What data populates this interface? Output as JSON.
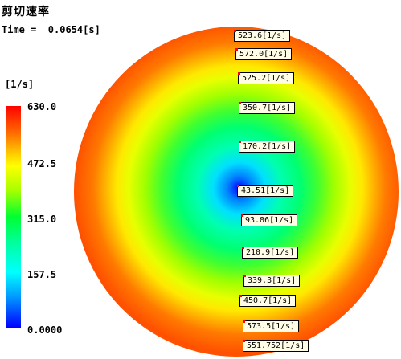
{
  "header": {
    "title": "剪切速率",
    "time_label": "Time =  0.0654[s]"
  },
  "legend": {
    "unit": "[1/s]",
    "ticks": [
      "630.0",
      "472.5",
      "315.0",
      "157.5",
      "0.0000"
    ],
    "colors": {
      "max": "#ff0000",
      "high": "#ffff00",
      "mid": "#00ff30",
      "low": "#00ffff",
      "min": "#0000ff"
    }
  },
  "probes": [
    {
      "label": "523.6[1/s]"
    },
    {
      "label": "572.0[1/s]"
    },
    {
      "label": "525.2[1/s]"
    },
    {
      "label": "350.7[1/s]"
    },
    {
      "label": "170.2[1/s]"
    },
    {
      "label": "43.51[1/s]"
    },
    {
      "label": "93.86[1/s]"
    },
    {
      "label": "210.9[1/s]"
    },
    {
      "label": "339.3[1/s]"
    },
    {
      "label": "450.7[1/s]"
    },
    {
      "label": "573.5[1/s]"
    },
    {
      "label": "551.752[1/s]"
    }
  ]
}
